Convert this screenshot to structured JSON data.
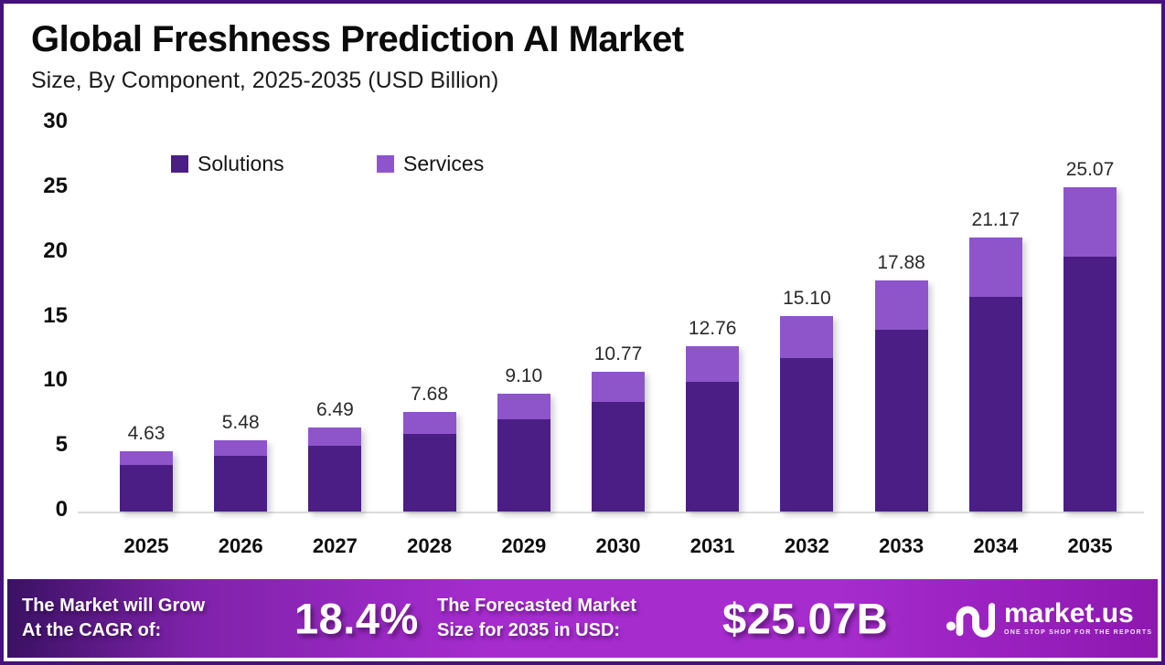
{
  "header": {
    "title": "Global Freshness Prediction AI Market",
    "subtitle": "Size, By Component, 2025-2035 (USD Billion)"
  },
  "chart_data": {
    "type": "bar",
    "stacked": true,
    "title": "Global Freshness Prediction AI Market",
    "subtitle": "Size, By Component, 2025-2035 (USD Billion)",
    "xlabel": "",
    "ylabel": "USD Billion",
    "ylim": [
      0,
      30
    ],
    "yticks": [
      0,
      5,
      10,
      15,
      20,
      25,
      30
    ],
    "grid": false,
    "legend_position": "top-left-inside",
    "categories": [
      "2025",
      "2026",
      "2027",
      "2028",
      "2029",
      "2030",
      "2031",
      "2032",
      "2033",
      "2034",
      "2035"
    ],
    "series": [
      {
        "name": "Solutions",
        "color": "#4B1E86",
        "values": [
          3.63,
          4.3,
          5.1,
          6.03,
          7.14,
          8.45,
          10.02,
          11.85,
          14.04,
          16.62,
          19.68
        ]
      },
      {
        "name": "Services",
        "color": "#8E55CA",
        "values": [
          1.0,
          1.18,
          1.39,
          1.65,
          1.96,
          2.32,
          2.74,
          3.25,
          3.84,
          4.55,
          5.39
        ]
      }
    ],
    "totals": [
      4.63,
      5.48,
      6.49,
      7.68,
      9.1,
      10.77,
      12.76,
      15.1,
      17.88,
      21.17,
      25.07
    ],
    "total_labels": [
      "4.63",
      "5.48",
      "6.49",
      "7.68",
      "9.10",
      "10.77",
      "12.76",
      "15.10",
      "17.88",
      "21.17",
      "25.07"
    ]
  },
  "footer": {
    "cagr_label_line1": "The Market will Grow",
    "cagr_label_line2": "At the CAGR of:",
    "cagr_value": "18.4%",
    "forecast_label_line1": "The Forecasted Market",
    "forecast_label_line2": "Size for 2035 in USD:",
    "forecast_value": "$25.07B",
    "logo_name": "market.us",
    "logo_tagline": "ONE STOP SHOP FOR THE REPORTS"
  },
  "colors": {
    "border": "#45127B",
    "baseline": "#DCDCDC",
    "footer_gradient": [
      "#3A1163",
      "#7F22AA",
      "#A62CCE",
      "#8E17B0"
    ]
  }
}
